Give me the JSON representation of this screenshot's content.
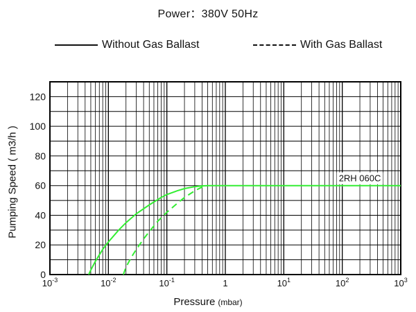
{
  "chart_data": {
    "type": "line",
    "title": "Power：380V 50Hz",
    "xlabel": "Pressure",
    "xlabel_unit": "(mbar)",
    "ylabel": "Pumping Speed ( m3/h )",
    "x_scale": "log",
    "xlim": [
      0.001,
      1000
    ],
    "ylim": [
      0,
      130
    ],
    "x_ticks": [
      0.001,
      0.01,
      0.1,
      1,
      10,
      100,
      1000
    ],
    "x_tick_labels": [
      {
        "base": "10",
        "exp": "-3"
      },
      {
        "base": "10",
        "exp": "-2"
      },
      {
        "base": "10",
        "exp": "-1"
      },
      {
        "base": "1",
        "exp": ""
      },
      {
        "base": "10",
        "exp": "1"
      },
      {
        "base": "10",
        "exp": "2"
      },
      {
        "base": "10",
        "exp": "3"
      }
    ],
    "y_ticks": [
      0,
      20,
      40,
      60,
      80,
      100,
      120
    ],
    "grid": true,
    "legend_position": "top",
    "annotation": {
      "text": "2RH 060C",
      "x": 200,
      "y": 60
    },
    "series": [
      {
        "name": "Without Gas Ballast",
        "style": "solid",
        "color": "#33ee33",
        "x": [
          0.0046,
          0.005,
          0.006,
          0.008,
          0.01,
          0.015,
          0.02,
          0.03,
          0.05,
          0.08,
          0.1,
          0.15,
          0.2,
          0.3,
          0.4,
          0.5,
          1,
          10,
          100,
          1000
        ],
        "y": [
          0,
          3,
          9,
          17,
          22,
          30,
          35,
          41,
          47,
          52,
          54,
          56.5,
          58,
          59.3,
          59.8,
          60,
          60,
          60,
          60,
          60
        ]
      },
      {
        "name": "With Gas Ballast",
        "style": "dashed",
        "color": "#33ee33",
        "x": [
          0.018,
          0.02,
          0.025,
          0.03,
          0.04,
          0.05,
          0.07,
          0.1,
          0.15,
          0.2,
          0.3,
          0.4,
          0.5
        ],
        "y": [
          0,
          5,
          12,
          17,
          24,
          29,
          36,
          42,
          48,
          52,
          56.5,
          59,
          60
        ]
      }
    ]
  }
}
